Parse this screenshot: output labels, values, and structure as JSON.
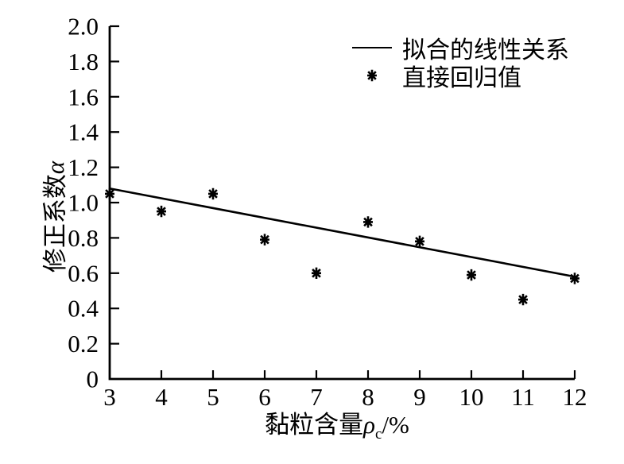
{
  "colors": {
    "foreground": "#000000",
    "background": "#ffffff"
  },
  "chart_data": {
    "type": "scatter",
    "title": "",
    "xlabel": {
      "text": "黏粒含量",
      "symbol": "ρ",
      "sub": "c",
      "suffix": "/%"
    },
    "ylabel": {
      "text": "修正系数",
      "symbol": "α"
    },
    "xlim": [
      3,
      12
    ],
    "ylim": [
      0,
      2.0
    ],
    "grid": false,
    "legend_position": "top-right-inside",
    "x_ticks": [
      3,
      4,
      5,
      6,
      7,
      8,
      9,
      10,
      11,
      12
    ],
    "y_ticks": [
      {
        "value": 0,
        "label": "0"
      },
      {
        "value": 0.2,
        "label": "0.2"
      },
      {
        "value": 0.4,
        "label": "0.4"
      },
      {
        "value": 0.6,
        "label": "0.6"
      },
      {
        "value": 0.8,
        "label": "0.8"
      },
      {
        "value": 1.0,
        "label": "1.0"
      },
      {
        "value": 1.2,
        "label": "1.2"
      },
      {
        "value": 1.4,
        "label": "1.4"
      },
      {
        "value": 1.6,
        "label": "1.6"
      },
      {
        "value": 1.8,
        "label": "1.8"
      },
      {
        "value": 2.0,
        "label": "2.0"
      }
    ],
    "series": [
      {
        "name": "拟合的线性关系",
        "type": "line",
        "x": [
          3,
          12
        ],
        "y": [
          1.08,
          0.58
        ]
      },
      {
        "name": "直接回归值",
        "type": "scatter",
        "marker": "asterisk",
        "x": [
          3,
          4,
          5,
          6,
          7,
          8,
          9,
          10,
          11,
          12
        ],
        "y": [
          1.05,
          0.95,
          1.05,
          0.79,
          0.6,
          0.89,
          0.78,
          0.59,
          0.45,
          0.57
        ]
      }
    ]
  }
}
